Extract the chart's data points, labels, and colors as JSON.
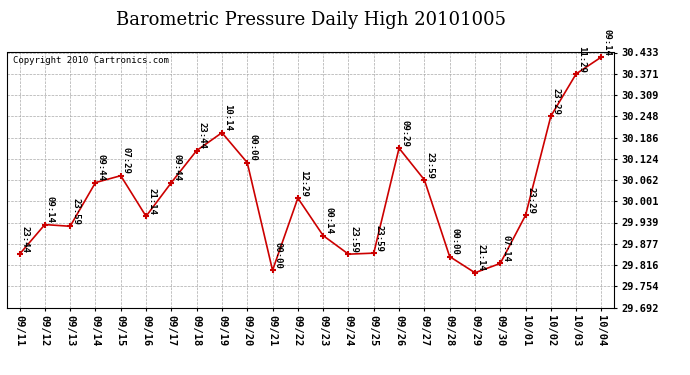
{
  "title": "Barometric Pressure Daily High 20101005",
  "copyright": "Copyright 2010 Cartronics.com",
  "x_labels": [
    "09/11",
    "09/12",
    "09/13",
    "09/14",
    "09/15",
    "09/16",
    "09/17",
    "09/18",
    "09/19",
    "09/20",
    "09/21",
    "09/22",
    "09/23",
    "09/24",
    "09/25",
    "09/26",
    "09/27",
    "09/28",
    "09/29",
    "09/30",
    "10/01",
    "10/02",
    "10/03",
    "10/04"
  ],
  "y_values": [
    29.847,
    29.933,
    29.928,
    30.055,
    30.075,
    29.957,
    30.055,
    30.148,
    30.2,
    30.113,
    29.8,
    30.01,
    29.901,
    29.847,
    29.85,
    30.155,
    30.063,
    29.84,
    29.793,
    29.82,
    29.96,
    30.248,
    30.371,
    30.42
  ],
  "point_labels": [
    "23:44",
    "09:14",
    "23:59",
    "09:44",
    "07:29",
    "21:14",
    "09:44",
    "23:44",
    "10:14",
    "00:00",
    "00:00",
    "12:29",
    "00:14",
    "23:59",
    "23:59",
    "09:29",
    "23:59",
    "00:00",
    "21:14",
    "07:14",
    "23:29",
    "23:29",
    "11:29",
    "09:14"
  ],
  "ylim_min": 29.692,
  "ylim_max": 30.433,
  "yticks": [
    29.692,
    29.754,
    29.816,
    29.877,
    29.939,
    30.001,
    30.062,
    30.124,
    30.186,
    30.248,
    30.309,
    30.371,
    30.433
  ],
  "line_color": "#cc0000",
  "marker_color": "#cc0000",
  "bg_color": "#ffffff",
  "grid_color": "#aaaaaa",
  "title_fontsize": 13,
  "label_fontsize": 7.5,
  "annotation_fontsize": 6.5
}
